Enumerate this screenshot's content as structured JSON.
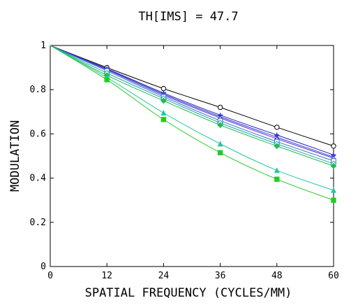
{
  "chart_data": {
    "type": "line",
    "title": "TH[IMS] = 47.7",
    "xlabel": "SPATIAL FREQUENCY (CYCLES/MM)",
    "ylabel": "MODULATION",
    "xlim": [
      0,
      60
    ],
    "ylim": [
      0,
      1
    ],
    "x_ticks": [
      "0",
      "12",
      "24",
      "36",
      "48",
      "60"
    ],
    "y_ticks": [
      "0",
      "0.2",
      "0.4",
      "0.6",
      "0.8",
      "1"
    ],
    "grid": false,
    "x": [
      0,
      12,
      24,
      36,
      48,
      60
    ],
    "series": [
      {
        "values": [
          1,
          0.9,
          0.805,
          0.72,
          0.63,
          0.545
        ],
        "color": "#000000",
        "marker": "open-circle"
      },
      {
        "values": [
          1,
          0.895,
          0.785,
          0.685,
          0.595,
          0.505
        ],
        "color": "#2020c0",
        "marker": "cross"
      },
      {
        "values": [
          1,
          0.893,
          0.78,
          0.678,
          0.585,
          0.495
        ],
        "color": "#2a3fcf",
        "marker": "x"
      },
      {
        "values": [
          1,
          0.89,
          0.775,
          0.672,
          0.578,
          0.49
        ],
        "color": "#6a2bd0",
        "marker": "open-triangle"
      },
      {
        "values": [
          1,
          0.885,
          0.768,
          0.66,
          0.565,
          0.478
        ],
        "color": "#2a74c9",
        "marker": "open-square"
      },
      {
        "values": [
          1,
          0.875,
          0.76,
          0.65,
          0.555,
          0.465
        ],
        "color": "#22a8a8",
        "marker": "open-diamond"
      },
      {
        "values": [
          1,
          0.865,
          0.75,
          0.64,
          0.545,
          0.455
        ],
        "color": "#22bb55",
        "marker": "filled-diamond"
      },
      {
        "values": [
          1,
          0.855,
          0.695,
          0.555,
          0.435,
          0.345
        ],
        "color": "#22c8a0",
        "marker": "filled-triangle"
      },
      {
        "values": [
          1,
          0.845,
          0.665,
          0.515,
          0.395,
          0.3
        ],
        "color": "#22cc22",
        "marker": "filled-square"
      }
    ]
  }
}
